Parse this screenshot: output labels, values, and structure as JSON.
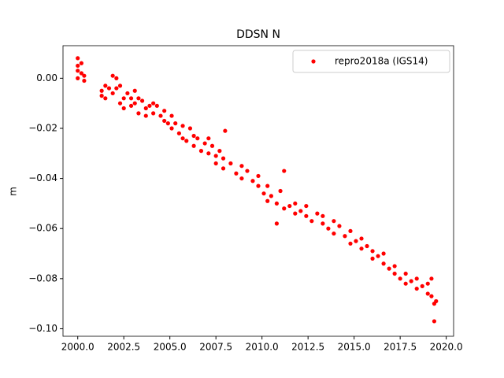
{
  "chart_data": {
    "type": "scatter",
    "title": "DDSN N",
    "y_label": "m",
    "xlim": [
      1999.2,
      2020.4
    ],
    "ylim": [
      -0.103,
      0.013
    ],
    "xticks": [
      {
        "value": 2000,
        "label": "2000.0"
      },
      {
        "value": 2002.5,
        "label": "2002.5"
      },
      {
        "value": 2005,
        "label": "2005.0"
      },
      {
        "value": 2007.5,
        "label": "2007.5"
      },
      {
        "value": 2010,
        "label": "2010.0"
      },
      {
        "value": 2012.5,
        "label": "2012.5"
      },
      {
        "value": 2015,
        "label": "2015.0"
      },
      {
        "value": 2017.5,
        "label": "2017.5"
      },
      {
        "value": 2020,
        "label": "2020.0"
      }
    ],
    "yticks": [
      {
        "value": 0,
        "label": "0.00"
      },
      {
        "value": -0.02,
        "label": "−0.02"
      },
      {
        "value": -0.04,
        "label": "−0.04"
      },
      {
        "value": -0.06,
        "label": "−0.06"
      },
      {
        "value": -0.08,
        "label": "−0.08"
      },
      {
        "value": -0.1,
        "label": "−0.10"
      }
    ],
    "legend": "upper right",
    "series": [
      {
        "name": "repro2018a (IGS14)",
        "color": "#ff0000",
        "x": [
          2000.0,
          2000.0,
          2000.0,
          2000.0,
          2000.2,
          2000.2,
          2000.35,
          2000.35,
          2001.3,
          2001.3,
          2001.5,
          2001.5,
          2001.7,
          2001.9,
          2001.9,
          2002.1,
          2002.1,
          2002.3,
          2002.3,
          2002.5,
          2002.5,
          2002.7,
          2002.9,
          2002.9,
          2003.1,
          2003.1,
          2003.3,
          2003.3,
          2003.5,
          2003.7,
          2003.7,
          2003.9,
          2004.1,
          2004.1,
          2004.3,
          2004.5,
          2004.7,
          2004.7,
          2004.9,
          2005.1,
          2005.1,
          2005.3,
          2005.5,
          2005.7,
          2005.7,
          2005.9,
          2006.1,
          2006.3,
          2006.3,
          2006.5,
          2006.7,
          2006.9,
          2007.1,
          2007.1,
          2007.3,
          2007.5,
          2007.5,
          2007.7,
          2007.9,
          2007.9,
          2008.0,
          2008.3,
          2008.6,
          2008.9,
          2008.9,
          2009.2,
          2009.5,
          2009.8,
          2009.8,
          2010.1,
          2010.3,
          2010.3,
          2010.5,
          2010.8,
          2010.8,
          2011.0,
          2011.2,
          2011.2,
          2011.5,
          2011.8,
          2011.8,
          2012.1,
          2012.4,
          2012.4,
          2012.7,
          2013.0,
          2013.3,
          2013.3,
          2013.6,
          2013.9,
          2013.9,
          2014.2,
          2014.5,
          2014.8,
          2014.8,
          2015.1,
          2015.4,
          2015.4,
          2015.7,
          2016.0,
          2016.0,
          2016.3,
          2016.6,
          2016.6,
          2016.9,
          2017.2,
          2017.2,
          2017.5,
          2017.8,
          2017.8,
          2018.1,
          2018.4,
          2018.4,
          2018.7,
          2019.0,
          2019.0,
          2019.2,
          2019.2,
          2019.35,
          2019.35,
          2019.45
        ],
        "values": [
          0.008,
          0.005,
          0.0,
          0.003,
          0.006,
          0.002,
          0.001,
          -0.001,
          -0.005,
          -0.007,
          -0.003,
          -0.008,
          -0.004,
          0.001,
          -0.006,
          0.0,
          -0.004,
          -0.003,
          -0.01,
          -0.008,
          -0.012,
          -0.006,
          -0.011,
          -0.008,
          -0.005,
          -0.01,
          -0.008,
          -0.014,
          -0.009,
          -0.012,
          -0.015,
          -0.011,
          -0.01,
          -0.014,
          -0.011,
          -0.015,
          -0.013,
          -0.017,
          -0.018,
          -0.015,
          -0.02,
          -0.018,
          -0.022,
          -0.019,
          -0.024,
          -0.025,
          -0.02,
          -0.023,
          -0.027,
          -0.024,
          -0.029,
          -0.026,
          -0.024,
          -0.03,
          -0.027,
          -0.031,
          -0.034,
          -0.029,
          -0.032,
          -0.036,
          -0.021,
          -0.034,
          -0.038,
          -0.035,
          -0.04,
          -0.037,
          -0.041,
          -0.043,
          -0.039,
          -0.046,
          -0.043,
          -0.049,
          -0.047,
          -0.05,
          -0.058,
          -0.045,
          -0.037,
          -0.052,
          -0.051,
          -0.054,
          -0.05,
          -0.053,
          -0.055,
          -0.051,
          -0.057,
          -0.054,
          -0.058,
          -0.055,
          -0.06,
          -0.057,
          -0.062,
          -0.059,
          -0.063,
          -0.061,
          -0.066,
          -0.065,
          -0.068,
          -0.064,
          -0.067,
          -0.069,
          -0.072,
          -0.071,
          -0.074,
          -0.07,
          -0.076,
          -0.075,
          -0.078,
          -0.08,
          -0.078,
          -0.082,
          -0.081,
          -0.084,
          -0.08,
          -0.083,
          -0.086,
          -0.082,
          -0.087,
          -0.08,
          -0.09,
          -0.097,
          -0.089
        ]
      }
    ]
  }
}
